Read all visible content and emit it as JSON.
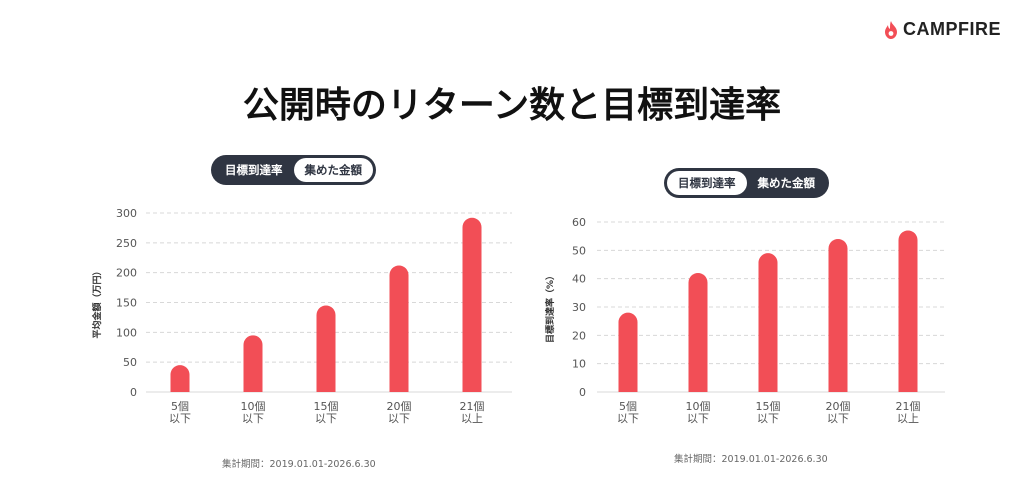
{
  "brand": {
    "name": "CAMPFIRE",
    "accent": "#f24e56"
  },
  "page": {
    "title": "公開時のリターン数と目標到達率"
  },
  "toggles": [
    {
      "options": [
        "目標到達率",
        "集めた金額"
      ],
      "active": 1
    },
    {
      "options": [
        "目標到達率",
        "集めた金額"
      ],
      "active": 0
    }
  ],
  "chart_data": [
    {
      "type": "bar",
      "ylabel": "平均金額（万円）",
      "categories": [
        [
          "5個",
          "以下"
        ],
        [
          "10個",
          "以下"
        ],
        [
          "15個",
          "以下"
        ],
        [
          "20個",
          "以下"
        ],
        [
          "21個",
          "以上"
        ]
      ],
      "values": [
        45,
        95,
        145,
        212,
        292
      ],
      "ylim": [
        0,
        300
      ],
      "yticks": [
        0,
        50,
        100,
        150,
        200,
        250,
        300
      ],
      "grid": true,
      "color": "#f24e56",
      "period": "集計期間：2019.01.01-2026.6.30"
    },
    {
      "type": "bar",
      "ylabel": "目標到達率（%）",
      "categories": [
        [
          "5個",
          "以下"
        ],
        [
          "10個",
          "以下"
        ],
        [
          "15個",
          "以下"
        ],
        [
          "20個",
          "以下"
        ],
        [
          "21個",
          "以上"
        ]
      ],
      "values": [
        28,
        42,
        49,
        54,
        57
      ],
      "ylim": [
        0,
        60
      ],
      "yticks": [
        0,
        10,
        20,
        30,
        40,
        50,
        60
      ],
      "grid": true,
      "color": "#f24e56",
      "period": "集計期間：2019.01.01-2026.6.30"
    }
  ]
}
